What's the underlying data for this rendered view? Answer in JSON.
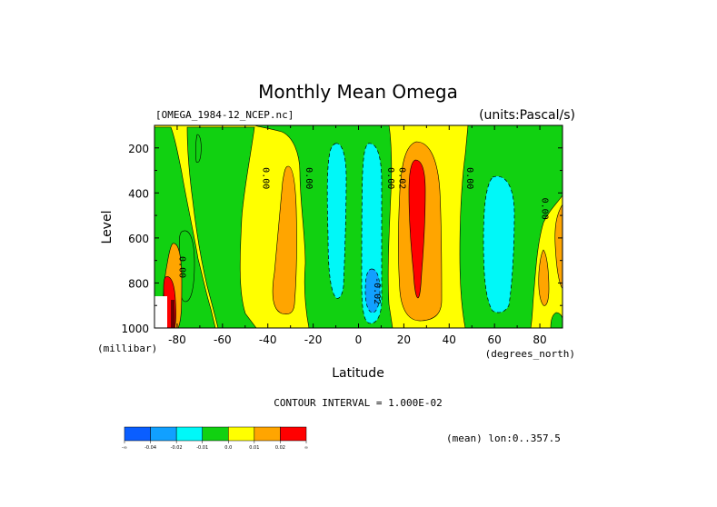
{
  "header": {
    "title": "Monthly Mean Omega",
    "file_label": "[OMEGA_1984-12_NCEP.nc]",
    "units_label": "(units:Pascal/s)",
    "contour_interval": "CONTOUR INTERVAL = 1.000E-02",
    "mean_note": "(mean) lon:0..357.5"
  },
  "chart_data": {
    "type": "contour",
    "title": "Monthly Mean Omega",
    "xlabel": "Latitude",
    "ylabel": "Level",
    "x_units": "(degrees_north)",
    "y_units": "(millibar)",
    "xlim": [
      -90,
      90
    ],
    "ylim": [
      1000,
      100
    ],
    "x_ticks": [
      -80,
      -60,
      -40,
      -20,
      0,
      20,
      40,
      60,
      80
    ],
    "x_tick_labels": [
      "-80",
      "-60",
      "-40",
      "-20",
      "0",
      "20",
      "40",
      "60",
      "80"
    ],
    "y_ticks": [
      200,
      400,
      600,
      800,
      1000
    ],
    "y_tick_labels": [
      "200",
      "400",
      "600",
      "800",
      "1000"
    ],
    "contour_labels": [
      {
        "text": "0.00",
        "lat": -79,
        "level": 730
      },
      {
        "text": "0.00",
        "lat": -42,
        "level": 335
      },
      {
        "text": "0.00",
        "lat": -23,
        "level": 335
      },
      {
        "text": "0.00",
        "lat": 13,
        "level": 335
      },
      {
        "text": "0.02",
        "lat": 18,
        "level": 335
      },
      {
        "text": "0.00",
        "lat": 48,
        "level": 335
      },
      {
        "text": "0.00",
        "lat": 81,
        "level": 470
      },
      {
        "text": "-0.02",
        "lat": 7,
        "level": 835
      }
    ],
    "colorbar": {
      "colors": [
        "#0a5eff",
        "#11a0ff",
        "#00f8f8",
        "#11d111",
        "#ffff00",
        "#ffa500",
        "#ff0000"
      ],
      "labels": [
        "-∞",
        "-0.04",
        "-0.02",
        "-0.01",
        "0.0",
        "0.01",
        "0.02",
        "∞"
      ]
    }
  }
}
